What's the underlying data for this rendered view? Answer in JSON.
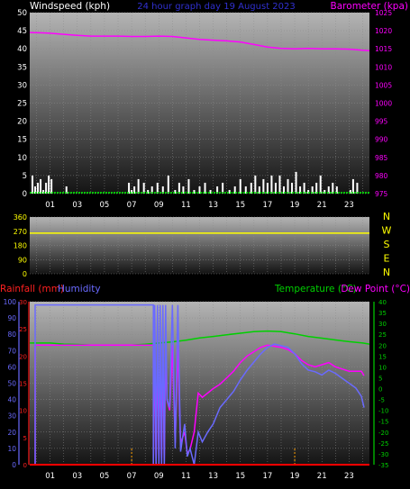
{
  "colors": {
    "background": "#000000",
    "plot_top": "#b4b4b4",
    "plot_bottom": "#141414",
    "grid": "#8c8c8c",
    "tick_text": "#ffffff",
    "wind": "#ffffff",
    "barometer": "#ff00ff",
    "direction": "#ffff00",
    "rainfall": "#ff0000",
    "humidity": "#6a6aff",
    "temperature": "#00d000",
    "dewpoint": "#ff00ff",
    "baseline_green": "#00ff00",
    "rain_axis_red": "#ff2020",
    "marker_orange": "#ffa000"
  },
  "header": {
    "windspeed_label": "Windspeed (kph)",
    "title": "24 hour graph day   19 August 2023",
    "barometer_label": "Barometer (kpa)"
  },
  "hour_labels": [
    "01",
    "03",
    "05",
    "07",
    "09",
    "11",
    "13",
    "15",
    "17",
    "19",
    "21",
    "23"
  ],
  "compass": [
    "N",
    "W",
    "S",
    "E",
    "N"
  ],
  "bottom_labels": {
    "rainfall": "Rainfall (mm)",
    "humidity": "Humidity",
    "temperature": "Temperature (°C)",
    "dewpoint": "Dew Point (°C)"
  },
  "chart_data": [
    {
      "type": "line",
      "title": "24 hour graph day   19 August 2023",
      "x_unit": "hour",
      "xlim": [
        -0.5,
        24.5
      ],
      "y_left": {
        "label": "Windspeed (kph)",
        "ylim": [
          0,
          50
        ],
        "ticks": [
          0,
          5,
          10,
          15,
          20,
          25,
          30,
          35,
          40,
          45,
          50
        ]
      },
      "y_right": {
        "label": "Barometer (kpa)",
        "ylim": [
          975,
          1025
        ],
        "ticks": [
          975,
          980,
          985,
          990,
          995,
          1000,
          1005,
          1010,
          1015,
          1020,
          1025
        ]
      },
      "series": [
        {
          "name": "Barometer (kpa)",
          "axis": "right",
          "x": [
            -0.5,
            0.5,
            1,
            2,
            3,
            4,
            5,
            6,
            7,
            8,
            9,
            10,
            11,
            12,
            13,
            14,
            15,
            16,
            17,
            18,
            19,
            20,
            21,
            22,
            23,
            24,
            24.5
          ],
          "y": [
            1019.5,
            1019.4,
            1019.3,
            1019,
            1018.7,
            1018.5,
            1018.5,
            1018.5,
            1018.4,
            1018.4,
            1018.5,
            1018.4,
            1018,
            1017.6,
            1017.4,
            1017.2,
            1016.9,
            1016.2,
            1015.5,
            1015.1,
            1015,
            1015.1,
            1015,
            1015,
            1014.9,
            1014.6,
            1014.5
          ]
        },
        {
          "name": "Windspeed (kph)",
          "axis": "left",
          "style": "bars",
          "x": [
            -0.3,
            -0.1,
            0.1,
            0.3,
            0.5,
            0.7,
            0.9,
            1.1,
            2.2,
            6.8,
            7.0,
            7.2,
            7.5,
            7.9,
            8.2,
            8.5,
            8.9,
            9.3,
            9.7,
            10.2,
            10.5,
            10.8,
            11.2,
            11.6,
            12.0,
            12.4,
            12.8,
            13.3,
            13.7,
            14.2,
            14.6,
            15.0,
            15.4,
            15.8,
            16.1,
            16.4,
            16.7,
            17.0,
            17.3,
            17.6,
            17.9,
            18.2,
            18.5,
            18.8,
            19.1,
            19.4,
            19.7,
            20.0,
            20.3,
            20.6,
            20.9,
            21.2,
            21.5,
            21.8,
            22.1,
            23.1,
            23.3,
            23.6
          ],
          "y": [
            5,
            2,
            3,
            4,
            1,
            3,
            5,
            4,
            2,
            3,
            1,
            2,
            4,
            3,
            1,
            2,
            3,
            2,
            5,
            1,
            3,
            2,
            4,
            1,
            2,
            3,
            1,
            2,
            3,
            1,
            2,
            4,
            2,
            3,
            5,
            2,
            4,
            3,
            5,
            3,
            5,
            2,
            4,
            3,
            6,
            2,
            3,
            1,
            2,
            3,
            5,
            1,
            2,
            3,
            2,
            1,
            4,
            3
          ]
        }
      ]
    },
    {
      "type": "line",
      "x_unit": "hour",
      "xlim": [
        -0.5,
        24.5
      ],
      "y_left": {
        "ylim": [
          0,
          360
        ],
        "ticks": [
          0,
          90,
          180,
          270,
          360
        ]
      },
      "y_right_labels": [
        "N",
        "W",
        "S",
        "E",
        "N"
      ],
      "series": [
        {
          "name": "Wind direction",
          "x": [
            -0.5,
            24.5
          ],
          "y": [
            258,
            258
          ]
        }
      ]
    },
    {
      "type": "line",
      "x_unit": "hour",
      "xlim": [
        -0.5,
        24.5
      ],
      "y_left_humidity": {
        "label": "Humidity",
        "ylim": [
          0,
          100
        ],
        "ticks": [
          0,
          10,
          20,
          30,
          40,
          50,
          60,
          70,
          80,
          90,
          100
        ]
      },
      "y_left_rain": {
        "label": "Rainfall (mm)",
        "ylim": [
          0,
          30
        ],
        "ticks": [
          0,
          5,
          10,
          15,
          20,
          25,
          30
        ]
      },
      "y_right": {
        "label": "Temperature (°C)",
        "ylim": [
          -35,
          40
        ],
        "ticks": [
          -35,
          -30,
          -25,
          -20,
          -15,
          -10,
          -5,
          0,
          5,
          10,
          15,
          20,
          25,
          30,
          35,
          40
        ]
      },
      "series": [
        {
          "name": "Humidity",
          "axis": "humidity",
          "x": [
            -0.3,
            -0.1,
            -0.1,
            8.6,
            8.6,
            8.7,
            8.8,
            8.9,
            9.0,
            9.1,
            9.2,
            9.3,
            9.4,
            9.5,
            9.6,
            9.8,
            10.0,
            10.2,
            10.4,
            10.6,
            10.9,
            11.1,
            11.3,
            11.6,
            11.9,
            12.2,
            12.6,
            13.0,
            13.5,
            14.0,
            14.5,
            15.0,
            15.5,
            16.0,
            16.5,
            17.0,
            17.5,
            18.0,
            18.5,
            19.0,
            19.5,
            20.0,
            20.5,
            21.0,
            21.5,
            22.0,
            22.5,
            23.0,
            23.5,
            23.9,
            24.1
          ],
          "y": [
            0,
            0,
            98,
            98,
            0,
            98,
            0,
            98,
            0,
            98,
            0,
            98,
            0,
            98,
            40,
            35,
            98,
            10,
            98,
            8,
            25,
            5,
            10,
            0,
            20,
            14,
            20,
            25,
            35,
            40,
            45,
            52,
            58,
            63,
            68,
            72,
            74,
            73,
            72,
            68,
            62,
            58,
            57,
            55,
            58,
            56,
            53,
            50,
            47,
            42,
            35
          ]
        },
        {
          "name": "Temperature (°C)",
          "axis": "right",
          "x": [
            -0.5,
            0,
            1,
            2,
            3,
            4,
            5,
            6,
            7,
            8,
            9,
            10,
            11,
            12,
            13,
            14,
            15,
            16,
            17,
            18,
            19,
            20,
            21,
            22,
            23,
            24,
            24.5
          ],
          "y": [
            21,
            21,
            21,
            20.5,
            20.3,
            20,
            20,
            20,
            20,
            20.4,
            21,
            21.5,
            22.3,
            23.3,
            24,
            24.8,
            25.5,
            26.2,
            26.5,
            26.2,
            25.2,
            24,
            23.2,
            22.4,
            21.6,
            21,
            20.5
          ]
        },
        {
          "name": "Dew Point (°C)",
          "axis": "right",
          "x": [
            -0.3,
            -0.1,
            -0.1,
            8.6,
            8.6,
            8.7,
            8.8,
            8.9,
            9.0,
            9.1,
            9.2,
            9.3,
            9.4,
            9.5,
            9.6,
            9.8,
            10.0,
            10.2,
            10.4,
            10.6,
            10.9,
            11.1,
            11.3,
            11.6,
            11.9,
            12.2,
            12.6,
            13.0,
            13.5,
            14.0,
            14.5,
            15.0,
            15.5,
            16.0,
            16.5,
            17.0,
            17.5,
            18.0,
            18.5,
            19.0,
            19.5,
            20.0,
            20.5,
            21.0,
            21.5,
            22.0,
            22.5,
            23.0,
            23.5,
            23.9,
            24.1
          ],
          "y": [
            -35,
            -35,
            20,
            20,
            -35,
            20,
            -35,
            20,
            -35,
            20,
            -35,
            20,
            -35,
            20,
            -5,
            -10,
            20,
            -25,
            20,
            -25,
            -20,
            -30,
            -28,
            -20,
            -2,
            -4,
            -2,
            0,
            2,
            5,
            8,
            12,
            15,
            17,
            19,
            20,
            19.5,
            19,
            18,
            16,
            13,
            11,
            10,
            11,
            12,
            10,
            9,
            8,
            8,
            8,
            6
          ]
        },
        {
          "name": "Rainfall (mm)",
          "axis": "rain",
          "x": [
            -0.5,
            24.5
          ],
          "y": [
            0,
            0
          ]
        }
      ]
    }
  ]
}
